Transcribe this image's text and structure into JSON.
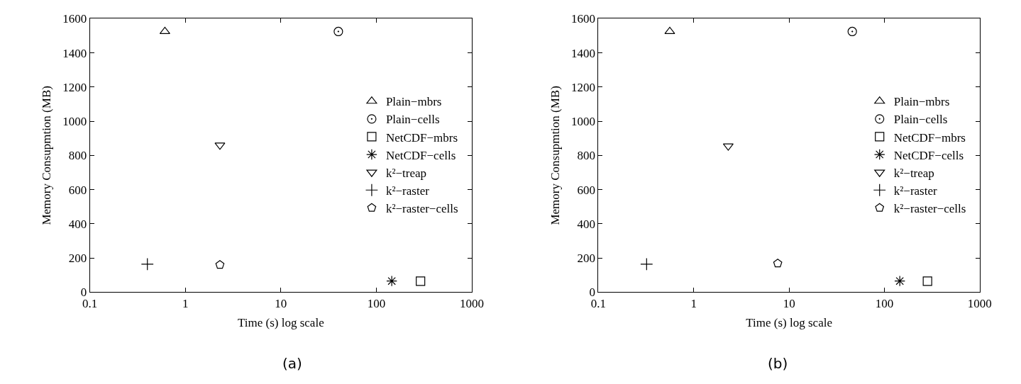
{
  "chart_data": [
    {
      "type": "scatter",
      "xlabel": "Time (s) log scale",
      "ylabel": "Memory Consupmtion (MB)",
      "log": "x",
      "xlim": [
        0.1,
        1000
      ],
      "xticks": [
        0.1,
        1,
        10,
        100,
        1000
      ],
      "ylim": [
        0,
        1600
      ],
      "yticks": [
        0,
        200,
        400,
        600,
        800,
        1000,
        1200,
        1400,
        1600
      ],
      "grid": false,
      "legend": "right",
      "annotations": [
        "(a)"
      ],
      "series": [
        {
          "name": "Plain−mbrs",
          "color": "#000000",
          "marker": "triangle",
          "x": [
            0.61
          ],
          "values": [
            1525
          ]
        },
        {
          "name": "Plain−cells",
          "color": "#000000",
          "marker": "circle",
          "x": [
            40
          ],
          "values": [
            1525
          ]
        },
        {
          "name": "NetCDF−mbrs",
          "color": "#000000",
          "marker": "square",
          "x": [
            290
          ],
          "values": [
            64
          ]
        },
        {
          "name": "NetCDF−cells",
          "color": "#000000",
          "x": [
            145
          ],
          "values": [
            65
          ]
        },
        {
          "name": "k²−treap",
          "color": "#000000",
          "marker": "triangle-down",
          "x": [
            2.3
          ],
          "values": [
            860
          ]
        },
        {
          "name": "k²−raster",
          "color": "#000000",
          "marker": "cross",
          "x": [
            0.4
          ],
          "values": [
            164
          ]
        },
        {
          "name": "k²−raster−cells",
          "color": "#000000",
          "x": [
            2.3
          ],
          "values": [
            160
          ]
        }
      ]
    },
    {
      "type": "scatter",
      "xlabel": "Time (s) log scale",
      "ylabel": "Memory Consupmtion (MB)",
      "log": "x",
      "xlim": [
        0.1,
        1000
      ],
      "xticks": [
        0.1,
        1,
        10,
        100,
        1000
      ],
      "ylim": [
        0,
        1600
      ],
      "yticks": [
        0,
        200,
        400,
        600,
        800,
        1000,
        1200,
        1400,
        1600
      ],
      "grid": false,
      "legend": "right",
      "annotations": [
        "(b)"
      ],
      "series": [
        {
          "name": "Plain−mbrs",
          "color": "#000000",
          "marker": "triangle",
          "x": [
            0.56
          ],
          "values": [
            1525
          ]
        },
        {
          "name": "Plain−cells",
          "color": "#000000",
          "marker": "circle",
          "x": [
            46
          ],
          "values": [
            1525
          ]
        },
        {
          "name": "NetCDF−mbrs",
          "color": "#000000",
          "marker": "square",
          "x": [
            283
          ],
          "values": [
            64
          ]
        },
        {
          "name": "NetCDF−cells",
          "color": "#000000",
          "x": [
            145
          ],
          "values": [
            65
          ]
        },
        {
          "name": "k²−treap",
          "color": "#000000",
          "marker": "triangle-down",
          "x": [
            2.3
          ],
          "values": [
            855
          ]
        },
        {
          "name": "k²−raster",
          "color": "#000000",
          "marker": "cross",
          "x": [
            0.32
          ],
          "values": [
            164
          ]
        },
        {
          "name": "k²−raster−cells",
          "color": "#000000",
          "x": [
            7.6
          ],
          "values": [
            168
          ]
        }
      ]
    }
  ]
}
